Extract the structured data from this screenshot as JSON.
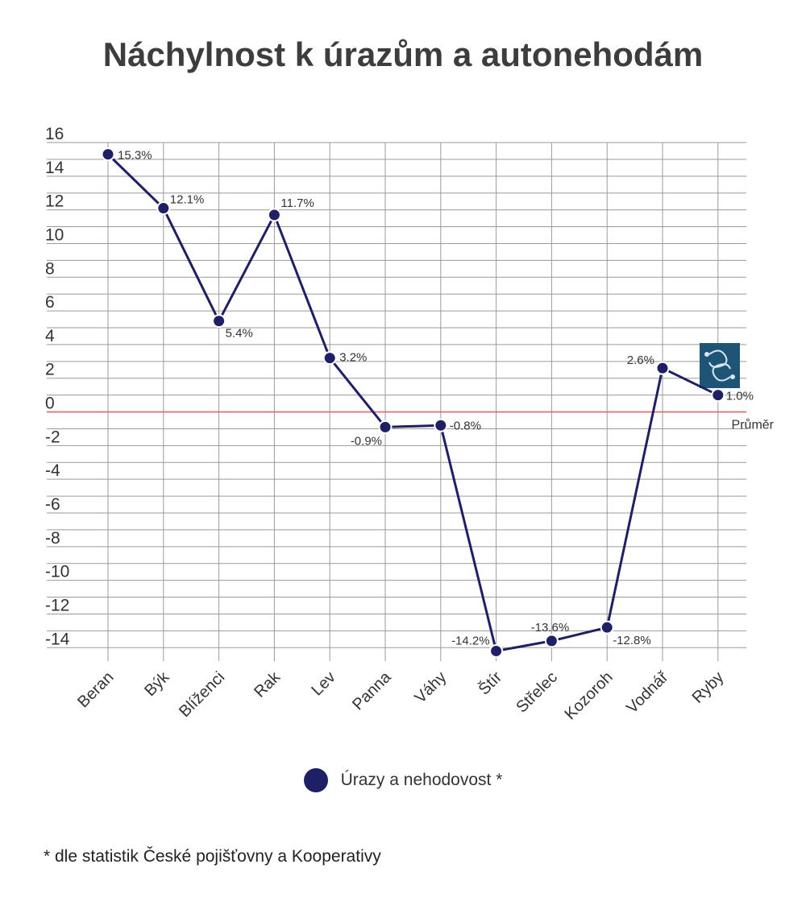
{
  "colors": {
    "series": "#1f1f66",
    "grid": "#9a9a9a",
    "average_line": "#e06666",
    "pisces_badge_bg": "#1e5577"
  },
  "chart_data": {
    "type": "line",
    "title": "Náchylnost k úrazům a autonehodám",
    "categories": [
      "Beran",
      "Býk",
      "Blíženci",
      "Rak",
      "Lev",
      "Panna",
      "Váhy",
      "Štír",
      "Střelec",
      "Kozoroh",
      "Vodnář",
      "Ryby"
    ],
    "series": [
      {
        "name": "Úrazy a nehodovost *",
        "values": [
          15.3,
          12.1,
          5.4,
          11.7,
          3.2,
          -0.9,
          -0.8,
          -14.2,
          -13.6,
          -12.8,
          2.6,
          1.0
        ],
        "labels": [
          "15.3%",
          "12.1%",
          "5.4%",
          "11.7%",
          "3.2%",
          "-0.9%",
          "-0.8%",
          "-14.2%",
          "-13.6%",
          "-12.8%",
          "2.6%",
          "1.0%"
        ]
      }
    ],
    "y_ticks": [
      16,
      14,
      12,
      10,
      8,
      6,
      4,
      2,
      0,
      -2,
      -4,
      -6,
      -8,
      -10,
      -12,
      -14
    ],
    "ylim": [
      -14.8,
      16
    ],
    "grid": true,
    "reference_line": {
      "value": 0,
      "label": "Průměr"
    },
    "legend_position": "bottom-center",
    "icon": "pisces-zodiac-icon"
  },
  "footnote": "* dle statistik České pojišťovny a Kooperativy"
}
